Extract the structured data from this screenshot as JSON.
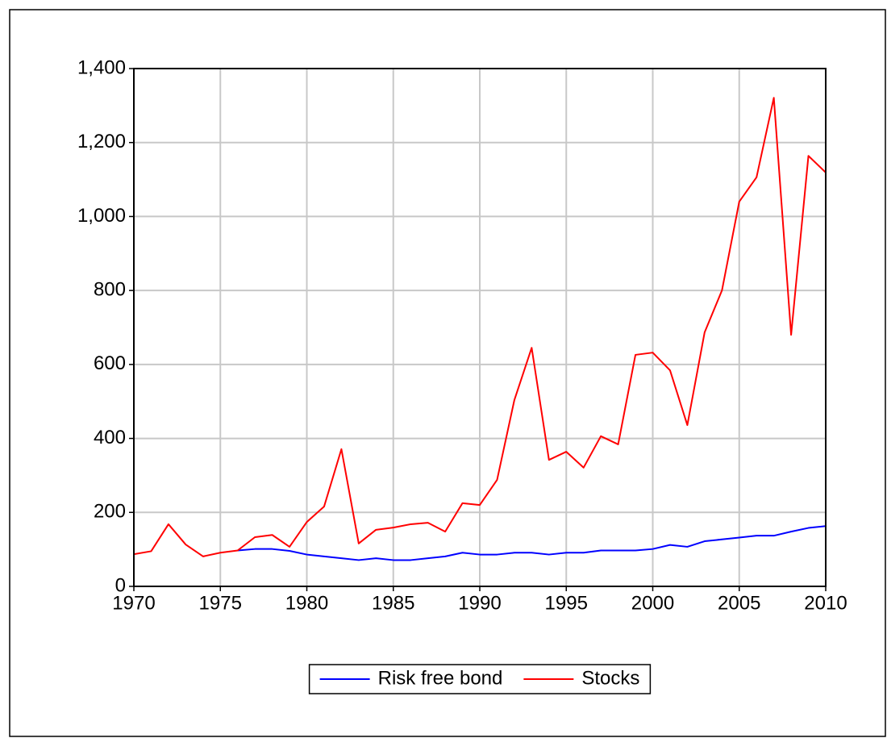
{
  "chart_data": {
    "type": "line",
    "x": [
      1970,
      1971,
      1972,
      1973,
      1974,
      1975,
      1976,
      1977,
      1978,
      1979,
      1980,
      1981,
      1982,
      1983,
      1984,
      1985,
      1986,
      1987,
      1988,
      1989,
      1990,
      1991,
      1992,
      1993,
      1994,
      1995,
      1996,
      1997,
      1998,
      1999,
      2000,
      2001,
      2002,
      2003,
      2004,
      2005,
      2006,
      2007,
      2008,
      2009,
      2010
    ],
    "series": [
      {
        "name": "Risk free bond",
        "color": "#0000ff",
        "values": [
          null,
          null,
          null,
          null,
          null,
          null,
          97,
          101,
          101,
          96,
          86,
          81,
          76,
          71,
          76,
          71,
          71,
          76,
          81,
          91,
          86,
          86,
          91,
          91,
          86,
          91,
          91,
          97,
          97,
          97,
          101,
          112,
          107,
          122,
          127,
          132,
          137,
          137,
          148,
          158,
          163
        ]
      },
      {
        "name": "Stocks",
        "color": "#ff0000",
        "values": [
          87,
          95,
          168,
          113,
          81,
          91,
          97,
          133,
          139,
          107,
          174,
          216,
          371,
          116,
          153,
          159,
          168,
          172,
          148,
          225,
          220,
          288,
          504,
          645,
          342,
          364,
          321,
          406,
          384,
          626,
          632,
          584,
          436,
          687,
          800,
          1040,
          1106,
          1321,
          680,
          1164,
          1119
        ]
      }
    ],
    "xlim": [
      1970,
      2010
    ],
    "xticks": [
      1970,
      1975,
      1980,
      1985,
      1990,
      1995,
      2000,
      2005,
      2010
    ],
    "ylim": [
      0,
      1400
    ],
    "yticks": [
      0,
      200,
      400,
      600,
      800,
      {
        "value": 1000,
        "label": "1,000"
      },
      {
        "value": 1200,
        "label": "1,200"
      },
      {
        "value": 1400,
        "label": "1,400"
      }
    ],
    "grid": true,
    "legend": "bottom"
  }
}
